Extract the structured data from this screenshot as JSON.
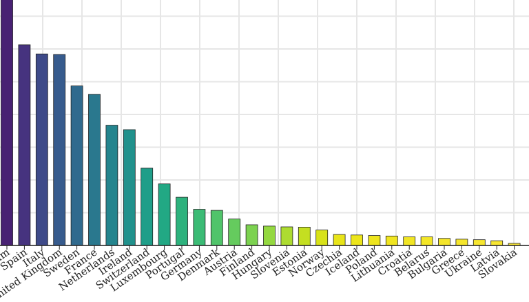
{
  "chart_data": {
    "type": "bar",
    "title": "",
    "xlabel": "",
    "ylabel": "",
    "grid": true,
    "ylim": [
      0,
      100
    ],
    "categories": [
      "Belgium",
      "Spain",
      "Italy",
      "United Kingdom",
      "Sweden",
      "France",
      "Netherlands",
      "Ireland",
      "Switzerland",
      "Luxembourg",
      "Portugal",
      "Germany",
      "Denmark",
      "Austria",
      "Finland",
      "Hungary",
      "Slovenia",
      "Estonia",
      "Norway",
      "Czechia",
      "Iceland",
      "Poland",
      "Lithuania",
      "Croatia",
      "Belarus",
      "Bulgaria",
      "Greece",
      "Ukraine",
      "Latvia",
      "Slovakia"
    ],
    "values": [
      100,
      76.6,
      73.1,
      72.9,
      60.9,
      57.7,
      45.9,
      44.2,
      29.5,
      23.5,
      18.4,
      13.8,
      13.4,
      10.1,
      7.9,
      7.4,
      7.1,
      7.0,
      5.9,
      4.2,
      4.0,
      3.8,
      3.6,
      3.3,
      3.3,
      2.7,
      2.4,
      2.2,
      1.8,
      0.8
    ],
    "colors": [
      "#482173",
      "#46337f",
      "#3e4a89",
      "#375b8d",
      "#306a8e",
      "#2a788e",
      "#25858e",
      "#21918c",
      "#1f9e89",
      "#22a884",
      "#2db27d",
      "#3bbb75",
      "#50c46a",
      "#65cb5e",
      "#7cd250",
      "#94d840",
      "#addc30",
      "#c4df21",
      "#d8e219",
      "#e8e419",
      "#ece51b",
      "#eee51e",
      "#f0e521",
      "#f1e524",
      "#f3e627",
      "#f4e52a",
      "#f5e62d",
      "#f6e630",
      "#f7e633",
      "#f8e636"
    ]
  }
}
